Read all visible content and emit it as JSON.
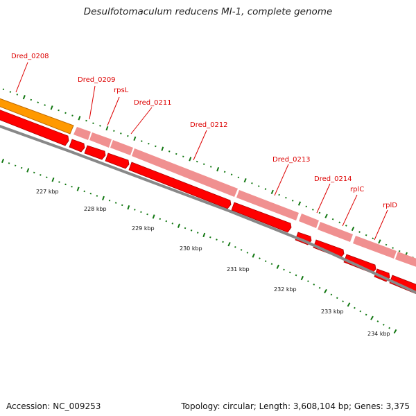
{
  "title": "Desulfotomaculum reducens MI-1, complete genome",
  "accession": "Accession: NC_009253",
  "summary": "Topology: circular; Length: 3,608,104 bp; Genes: 3,375",
  "colors": {
    "label": "#dd0000",
    "cds_forward": "#ff0000",
    "gene_feature": "#f09090",
    "other_feature": "#ff9900",
    "backbone": "#888888",
    "ticks": "#117711"
  },
  "gene_labels": [
    "Dred_0208",
    "Dred_0209",
    "rpsL",
    "Dred_0211",
    "Dred_0212",
    "Dred_0213",
    "Dred_0214",
    "rplC",
    "rplD"
  ],
  "scale": {
    "unit": "kbp",
    "labels": [
      "227 kbp",
      "228 kbp",
      "229 kbp",
      "230 kbp",
      "231 kbp",
      "232 kbp",
      "233 kbp",
      "234 kbp"
    ]
  }
}
